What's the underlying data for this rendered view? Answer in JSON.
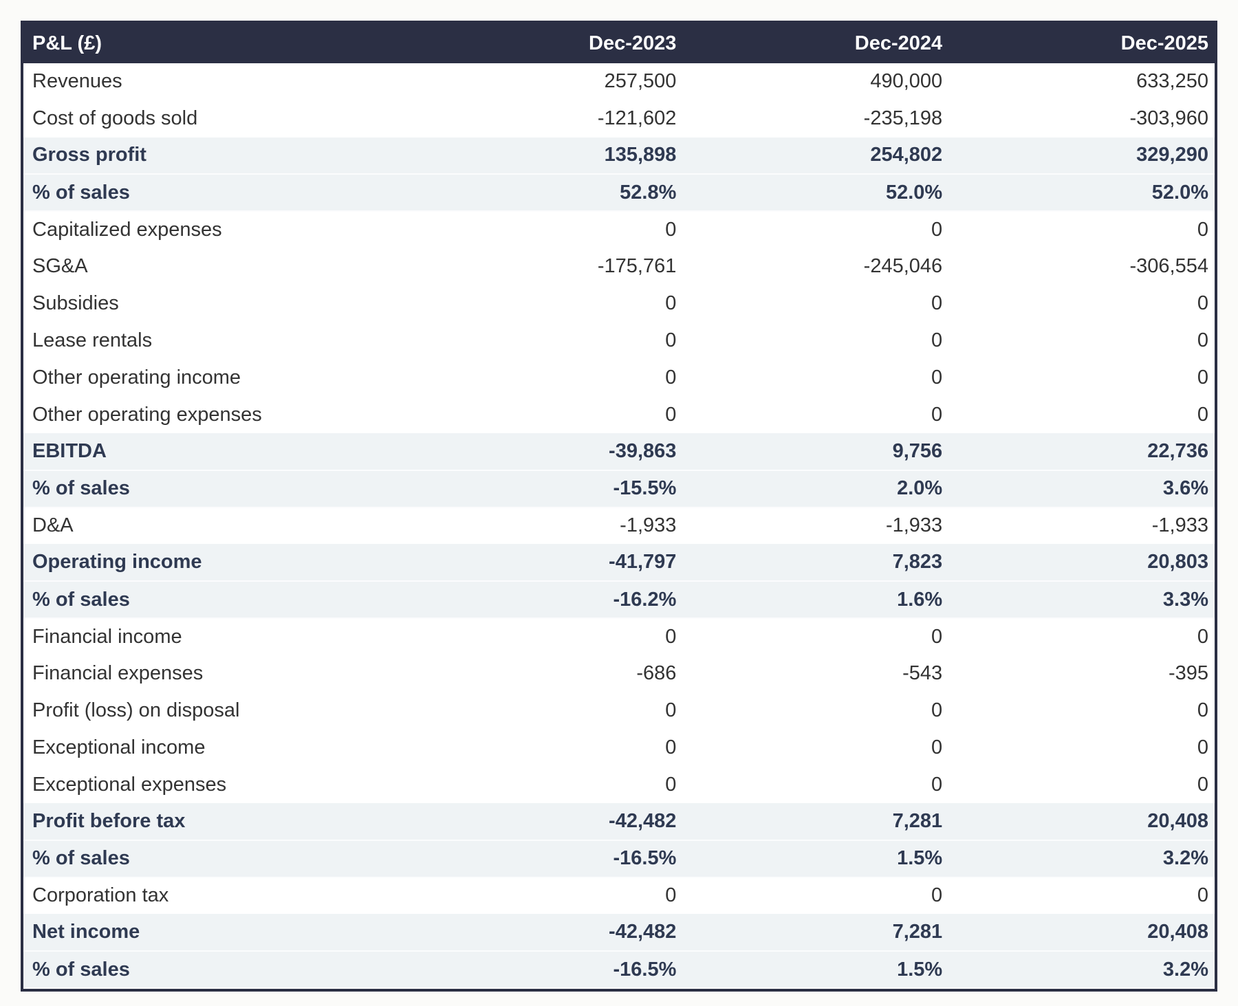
{
  "chart_data": {
    "type": "table",
    "title": "P&L (£)",
    "columns": [
      "Dec-2023",
      "Dec-2024",
      "Dec-2025"
    ],
    "rows": [
      {
        "label": "Revenues",
        "values": [
          "257,500",
          "490,000",
          "633,250"
        ],
        "emphasis": false
      },
      {
        "label": "Cost of goods sold",
        "values": [
          "-121,602",
          "-235,198",
          "-303,960"
        ],
        "emphasis": false
      },
      {
        "label": "Gross profit",
        "values": [
          "135,898",
          "254,802",
          "329,290"
        ],
        "emphasis": true
      },
      {
        "label": "% of sales",
        "values": [
          "52.8%",
          "52.0%",
          "52.0%"
        ],
        "emphasis": true
      },
      {
        "label": "Capitalized expenses",
        "values": [
          "0",
          "0",
          "0"
        ],
        "emphasis": false
      },
      {
        "label": "SG&A",
        "values": [
          "-175,761",
          "-245,046",
          "-306,554"
        ],
        "emphasis": false
      },
      {
        "label": "Subsidies",
        "values": [
          "0",
          "0",
          "0"
        ],
        "emphasis": false
      },
      {
        "label": "Lease rentals",
        "values": [
          "0",
          "0",
          "0"
        ],
        "emphasis": false
      },
      {
        "label": "Other operating income",
        "values": [
          "0",
          "0",
          "0"
        ],
        "emphasis": false
      },
      {
        "label": "Other operating expenses",
        "values": [
          "0",
          "0",
          "0"
        ],
        "emphasis": false
      },
      {
        "label": "EBITDA",
        "values": [
          "-39,863",
          "9,756",
          "22,736"
        ],
        "emphasis": true
      },
      {
        "label": "% of sales",
        "values": [
          "-15.5%",
          "2.0%",
          "3.6%"
        ],
        "emphasis": true
      },
      {
        "label": "D&A",
        "values": [
          "-1,933",
          "-1,933",
          "-1,933"
        ],
        "emphasis": false
      },
      {
        "label": "Operating income",
        "values": [
          "-41,797",
          "7,823",
          "20,803"
        ],
        "emphasis": true
      },
      {
        "label": "% of sales",
        "values": [
          "-16.2%",
          "1.6%",
          "3.3%"
        ],
        "emphasis": true
      },
      {
        "label": "Financial income",
        "values": [
          "0",
          "0",
          "0"
        ],
        "emphasis": false
      },
      {
        "label": "Financial expenses",
        "values": [
          "-686",
          "-543",
          "-395"
        ],
        "emphasis": false
      },
      {
        "label": "Profit (loss) on disposal",
        "values": [
          "0",
          "0",
          "0"
        ],
        "emphasis": false
      },
      {
        "label": "Exceptional income",
        "values": [
          "0",
          "0",
          "0"
        ],
        "emphasis": false
      },
      {
        "label": "Exceptional expenses",
        "values": [
          "0",
          "0",
          "0"
        ],
        "emphasis": false
      },
      {
        "label": "Profit before tax",
        "values": [
          "-42,482",
          "7,281",
          "20,408"
        ],
        "emphasis": true
      },
      {
        "label": "% of sales",
        "values": [
          "-16.5%",
          "1.5%",
          "3.2%"
        ],
        "emphasis": true
      },
      {
        "label": "Corporation tax",
        "values": [
          "0",
          "0",
          "0"
        ],
        "emphasis": false
      },
      {
        "label": "Net income",
        "values": [
          "-42,482",
          "7,281",
          "20,408"
        ],
        "emphasis": true
      },
      {
        "label": "% of sales",
        "values": [
          "-16.5%",
          "1.5%",
          "3.2%"
        ],
        "emphasis": true
      }
    ],
    "layout": {
      "legend": "none",
      "grid": "off",
      "value_alignment": "right"
    },
    "colors": {
      "header_background": "#2b2f44",
      "header_text": "#ffffff",
      "subtotal_row_background": "#eff3f5",
      "subtotal_row_text": "#2f3a52",
      "body_text": "#333333",
      "table_border": "#2b2f44",
      "row_background": "#ffffff"
    }
  }
}
